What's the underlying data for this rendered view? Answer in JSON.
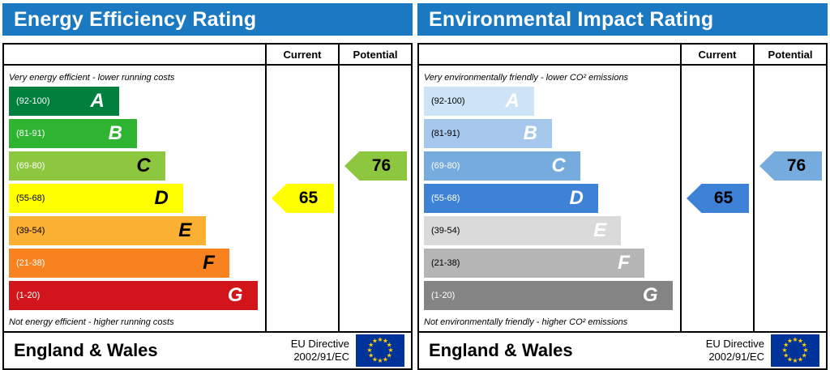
{
  "theme": {
    "header_bg": "#1b79c2",
    "header_text": "#ffffff",
    "flag_bg": "#003399",
    "flag_star": "#ffcc00"
  },
  "panels": [
    {
      "title": "Energy Efficiency Rating",
      "columns": {
        "current": "Current",
        "potential": "Potential"
      },
      "top_note": "Very energy efficient - lower running costs",
      "bottom_note": "Not energy efficient - higher running costs",
      "footer_region": "England & Wales",
      "directive_line1": "EU Directive",
      "directive_line2": "2002/91/EC",
      "bands": [
        {
          "range": "(92-100)",
          "letter": "A",
          "width_pct": 43,
          "color": "#007f3d",
          "range_color": "#ffffff",
          "letter_color": "#ffffff"
        },
        {
          "range": "(81-91)",
          "letter": "B",
          "width_pct": 50,
          "color": "#2eb430",
          "range_color": "#ffffff",
          "letter_color": "#ffffff"
        },
        {
          "range": "(69-80)",
          "letter": "C",
          "width_pct": 61,
          "color": "#8dc63f",
          "range_color": "#ffffff",
          "letter_color": "#000000"
        },
        {
          "range": "(55-68)",
          "letter": "D",
          "width_pct": 68,
          "color": "#ffff00",
          "range_color": "#000000",
          "letter_color": "#000000"
        },
        {
          "range": "(39-54)",
          "letter": "E",
          "width_pct": 77,
          "color": "#fbb033",
          "range_color": "#000000",
          "letter_color": "#000000"
        },
        {
          "range": "(21-38)",
          "letter": "F",
          "width_pct": 86,
          "color": "#f7821f",
          "range_color": "#ffffff",
          "letter_color": "#000000"
        },
        {
          "range": "(1-20)",
          "letter": "G",
          "width_pct": 97,
          "color": "#d2151b",
          "range_color": "#ffffff",
          "letter_color": "#ffffff"
        }
      ],
      "current": {
        "value": "65",
        "band_index": 3,
        "color": "#ffff00",
        "text_color": "#000000"
      },
      "potential": {
        "value": "76",
        "band_index": 2,
        "color": "#8dc63f",
        "text_color": "#000000"
      }
    },
    {
      "title": "Environmental Impact Rating",
      "columns": {
        "current": "Current",
        "potential": "Potential"
      },
      "top_note": "Very environmentally friendly - lower CO² emissions",
      "bottom_note": "Not environmentally friendly - higher CO² emissions",
      "footer_region": "England & Wales",
      "directive_line1": "EU Directive",
      "directive_line2": "2002/91/EC",
      "bands": [
        {
          "range": "(92-100)",
          "letter": "A",
          "width_pct": 43,
          "color": "#cce4f5",
          "range_color": "#000000",
          "letter_color": "#ffffff"
        },
        {
          "range": "(81-91)",
          "letter": "B",
          "width_pct": 50,
          "color": "#a6c8ec",
          "range_color": "#000000",
          "letter_color": "#ffffff"
        },
        {
          "range": "(69-80)",
          "letter": "C",
          "width_pct": 61,
          "color": "#76abde",
          "range_color": "#ffffff",
          "letter_color": "#ffffff"
        },
        {
          "range": "(55-68)",
          "letter": "D",
          "width_pct": 68,
          "color": "#3e82d7",
          "range_color": "#ffffff",
          "letter_color": "#ffffff"
        },
        {
          "range": "(39-54)",
          "letter": "E",
          "width_pct": 77,
          "color": "#dadada",
          "range_color": "#000000",
          "letter_color": "#ffffff"
        },
        {
          "range": "(21-38)",
          "letter": "F",
          "width_pct": 86,
          "color": "#b5b5b5",
          "range_color": "#000000",
          "letter_color": "#ffffff"
        },
        {
          "range": "(1-20)",
          "letter": "G",
          "width_pct": 97,
          "color": "#848484",
          "range_color": "#ffffff",
          "letter_color": "#ffffff"
        }
      ],
      "current": {
        "value": "65",
        "band_index": 3,
        "color": "#3e82d7",
        "text_color": "#000000"
      },
      "potential": {
        "value": "76",
        "band_index": 2,
        "color": "#76abde",
        "text_color": "#000000"
      }
    }
  ],
  "chart_data": [
    {
      "type": "bar",
      "title": "Energy Efficiency Rating",
      "categories": [
        "A",
        "B",
        "C",
        "D",
        "E",
        "F",
        "G"
      ],
      "band_ranges": [
        "92-100",
        "81-91",
        "69-80",
        "55-68",
        "39-54",
        "21-38",
        "1-20"
      ],
      "series": [
        {
          "name": "Current",
          "value": 65,
          "band": "D"
        },
        {
          "name": "Potential",
          "value": 76,
          "band": "C"
        }
      ],
      "footer": "England & Wales",
      "directive": "EU Directive 2002/91/EC"
    },
    {
      "type": "bar",
      "title": "Environmental Impact Rating",
      "categories": [
        "A",
        "B",
        "C",
        "D",
        "E",
        "F",
        "G"
      ],
      "band_ranges": [
        "92-100",
        "81-91",
        "69-80",
        "55-68",
        "39-54",
        "21-38",
        "1-20"
      ],
      "series": [
        {
          "name": "Current",
          "value": 65,
          "band": "D"
        },
        {
          "name": "Potential",
          "value": 76,
          "band": "C"
        }
      ],
      "footer": "England & Wales",
      "directive": "EU Directive 2002/91/EC"
    }
  ]
}
